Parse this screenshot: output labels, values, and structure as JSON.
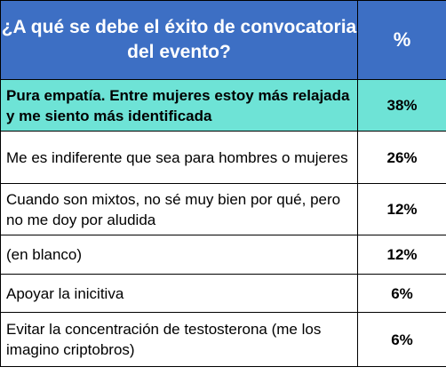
{
  "header": {
    "question": "¿A qué se debe el éxito de convocatoria del evento?",
    "percent": "%"
  },
  "colors": {
    "header_bg": "#3d6fc4",
    "highlight_bg": "#6ee3d6"
  },
  "rows": [
    {
      "label": "Pura empatía. Entre mujeres estoy más relajada y me siento más identificada",
      "value": "38%"
    },
    {
      "label": "Me es indiferente que sea para hombres o mujeres",
      "value": "26%"
    },
    {
      "label": "Cuando son mixtos, no sé muy bien por qué, pero no me doy por aludida",
      "value": "12%"
    },
    {
      "label": "(en blanco)",
      "value": "12%"
    },
    {
      "label": "Apoyar la inicitiva",
      "value": "6%"
    },
    {
      "label": "Evitar la concentración de testosterona (me los imagino criptobros)",
      "value": "6%"
    }
  ]
}
